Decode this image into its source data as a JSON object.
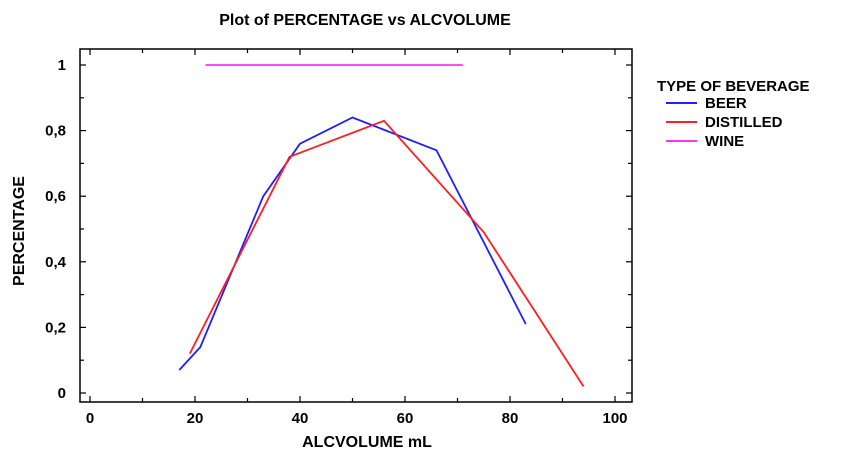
{
  "chart_data": {
    "type": "line",
    "title": "Plot of PERCENTAGE vs ALCVOLUME",
    "xlabel": "ALCVOLUME mL",
    "ylabel": "PERCENTAGE",
    "xlim": [
      0,
      100
    ],
    "ylim": [
      0,
      1
    ],
    "x_ticks": [
      "0",
      "20",
      "40",
      "60",
      "80",
      "100"
    ],
    "y_ticks": [
      "0",
      "0,2",
      "0,4",
      "0,6",
      "0,8",
      "1"
    ],
    "grid": false,
    "legend_title": "TYPE OF BEVERAGE",
    "legend_position": "right",
    "series": [
      {
        "name": "BEER",
        "color": "#1f1fff",
        "x": [
          17,
          21,
          33,
          40,
          50,
          66,
          83
        ],
        "y": [
          0.07,
          0.14,
          0.6,
          0.76,
          0.84,
          0.74,
          0.21
        ]
      },
      {
        "name": "DISTILLED",
        "color": "#ff1f1f",
        "x": [
          19,
          38,
          56,
          75,
          94
        ],
        "y": [
          0.12,
          0.72,
          0.83,
          0.49,
          0.02
        ]
      },
      {
        "name": "WINE",
        "color": "#ff33ff",
        "x": [
          22,
          71
        ],
        "y": [
          1.0,
          1.0
        ]
      }
    ]
  }
}
